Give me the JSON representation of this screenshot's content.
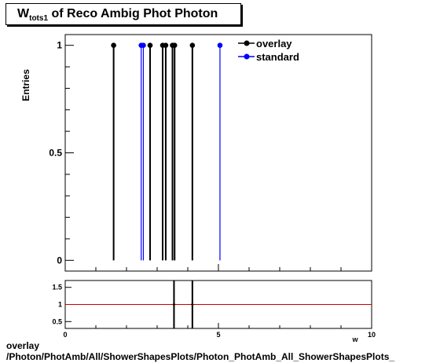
{
  "title": {
    "main": "W",
    "sub": "tots1",
    "rest": " of Reco Ambig Phot Photon"
  },
  "footer": {
    "line1": "overlay",
    "line2": "/Photon/PhotAmb/All/ShowerShapesPlots/Photon_PhotAmb_All_ShowerShapesPlots_"
  },
  "chart_data": [
    {
      "type": "scatter",
      "ylabel": "Entries",
      "xlim": [
        0,
        10
      ],
      "ylim": [
        -0.05,
        1.05
      ],
      "yticks": [
        0,
        0.5,
        1
      ],
      "ytick_labels": [
        "0",
        "0.5",
        "1"
      ],
      "legend_placement": "top-right",
      "series": [
        {
          "name": "overlay",
          "color": "#000000",
          "x": [
            1.58,
            2.77,
            3.18,
            3.28,
            3.5,
            3.57,
            4.15
          ],
          "y": [
            1,
            1,
            1,
            1,
            1,
            1,
            1
          ]
        },
        {
          "name": "standard",
          "color": "#0000ff",
          "x": [
            2.48,
            2.55,
            5.05
          ],
          "y": [
            1,
            1,
            1
          ]
        }
      ]
    },
    {
      "type": "line",
      "xlabel": "w",
      "xlim": [
        0,
        10
      ],
      "ylim": [
        0.3,
        1.7
      ],
      "yticks": [
        0.5,
        1,
        1.5
      ],
      "ytick_labels": [
        "0.5",
        "1",
        "1.5"
      ],
      "xticks": [
        0,
        5,
        10
      ],
      "xtick_labels": [
        "0",
        "5",
        "10"
      ],
      "reference_line": {
        "y": 1,
        "color": "#cc0000"
      },
      "spikes_x": [
        3.55,
        4.15
      ],
      "points": [
        {
          "x": 3.55,
          "y": 1
        },
        {
          "x": 4.15,
          "y": 1
        }
      ]
    }
  ]
}
